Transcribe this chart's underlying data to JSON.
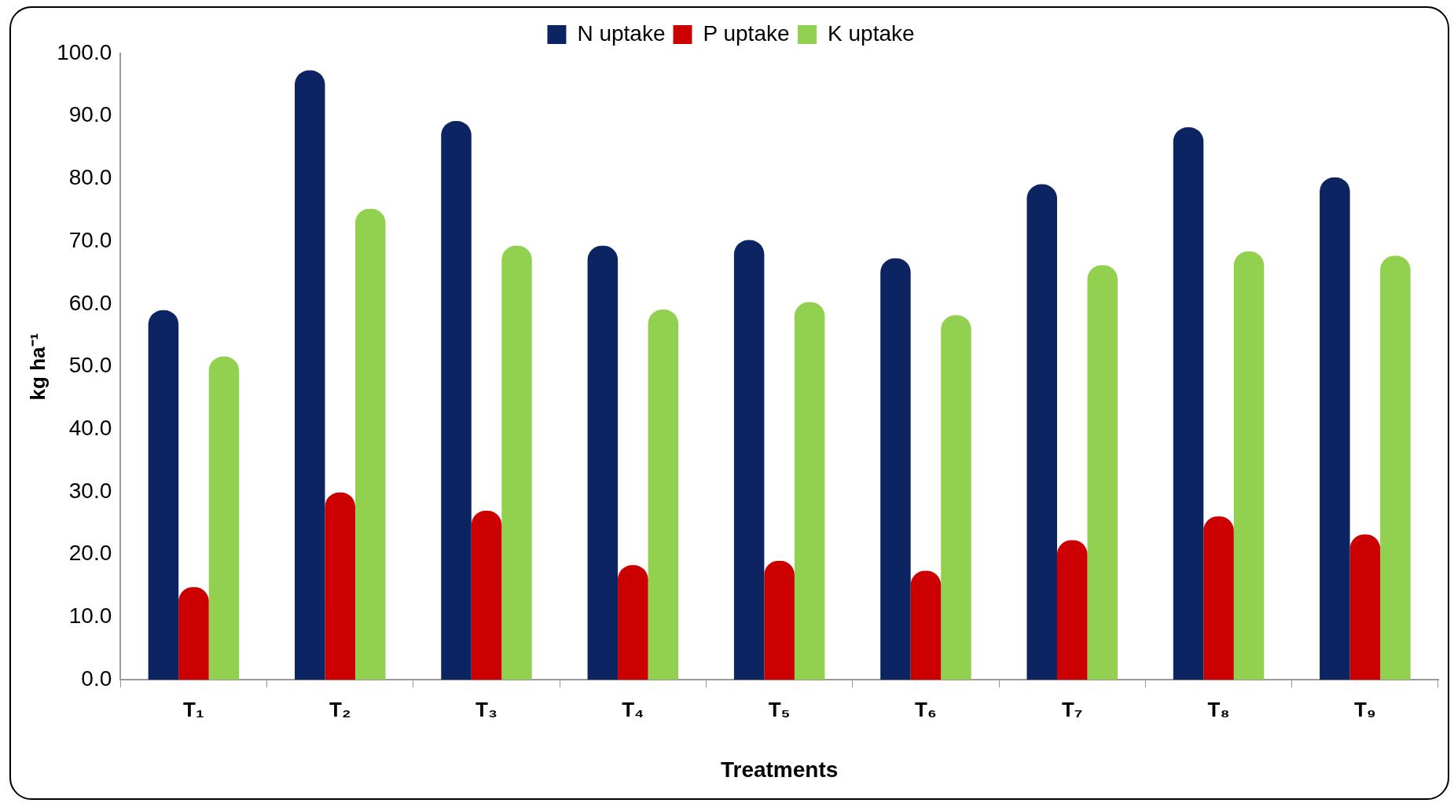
{
  "chart_data": {
    "type": "bar",
    "xlabel": "Treatments",
    "ylabel": "kg ha⁻¹",
    "categories": [
      "T₁",
      "T₂",
      "T₃",
      "T₄",
      "T₅",
      "T₆",
      "T₇",
      "T₈",
      "T₉"
    ],
    "series": [
      {
        "name": "N uptake",
        "color": "#0c2461",
        "values": [
          59.0,
          97.3,
          89.2,
          69.3,
          70.2,
          67.3,
          79.1,
          88.2,
          80.2
        ]
      },
      {
        "name": "P uptake",
        "color": "#cc0000",
        "values": [
          14.8,
          29.9,
          27.0,
          18.3,
          19.0,
          17.4,
          22.3,
          26.1,
          23.2
        ]
      },
      {
        "name": "K uptake",
        "color": "#92d050",
        "values": [
          51.6,
          75.2,
          69.3,
          59.1,
          60.3,
          58.2,
          66.2,
          68.4,
          67.7
        ]
      }
    ],
    "ylim": [
      0,
      100
    ],
    "yticks": [
      {
        "value": 0,
        "label": "0.0"
      },
      {
        "value": 10,
        "label": "10.0"
      },
      {
        "value": 20,
        "label": "20.0"
      },
      {
        "value": 30,
        "label": "30.0"
      },
      {
        "value": 40,
        "label": "40.0"
      },
      {
        "value": 50,
        "label": "50.0"
      },
      {
        "value": 60,
        "label": "60.0"
      },
      {
        "value": 70,
        "label": "70.0"
      },
      {
        "value": 80,
        "label": "80.0"
      },
      {
        "value": 90,
        "label": "90.0"
      },
      {
        "value": 100,
        "label": "100.0"
      }
    ],
    "grid": false,
    "legend": "top"
  }
}
